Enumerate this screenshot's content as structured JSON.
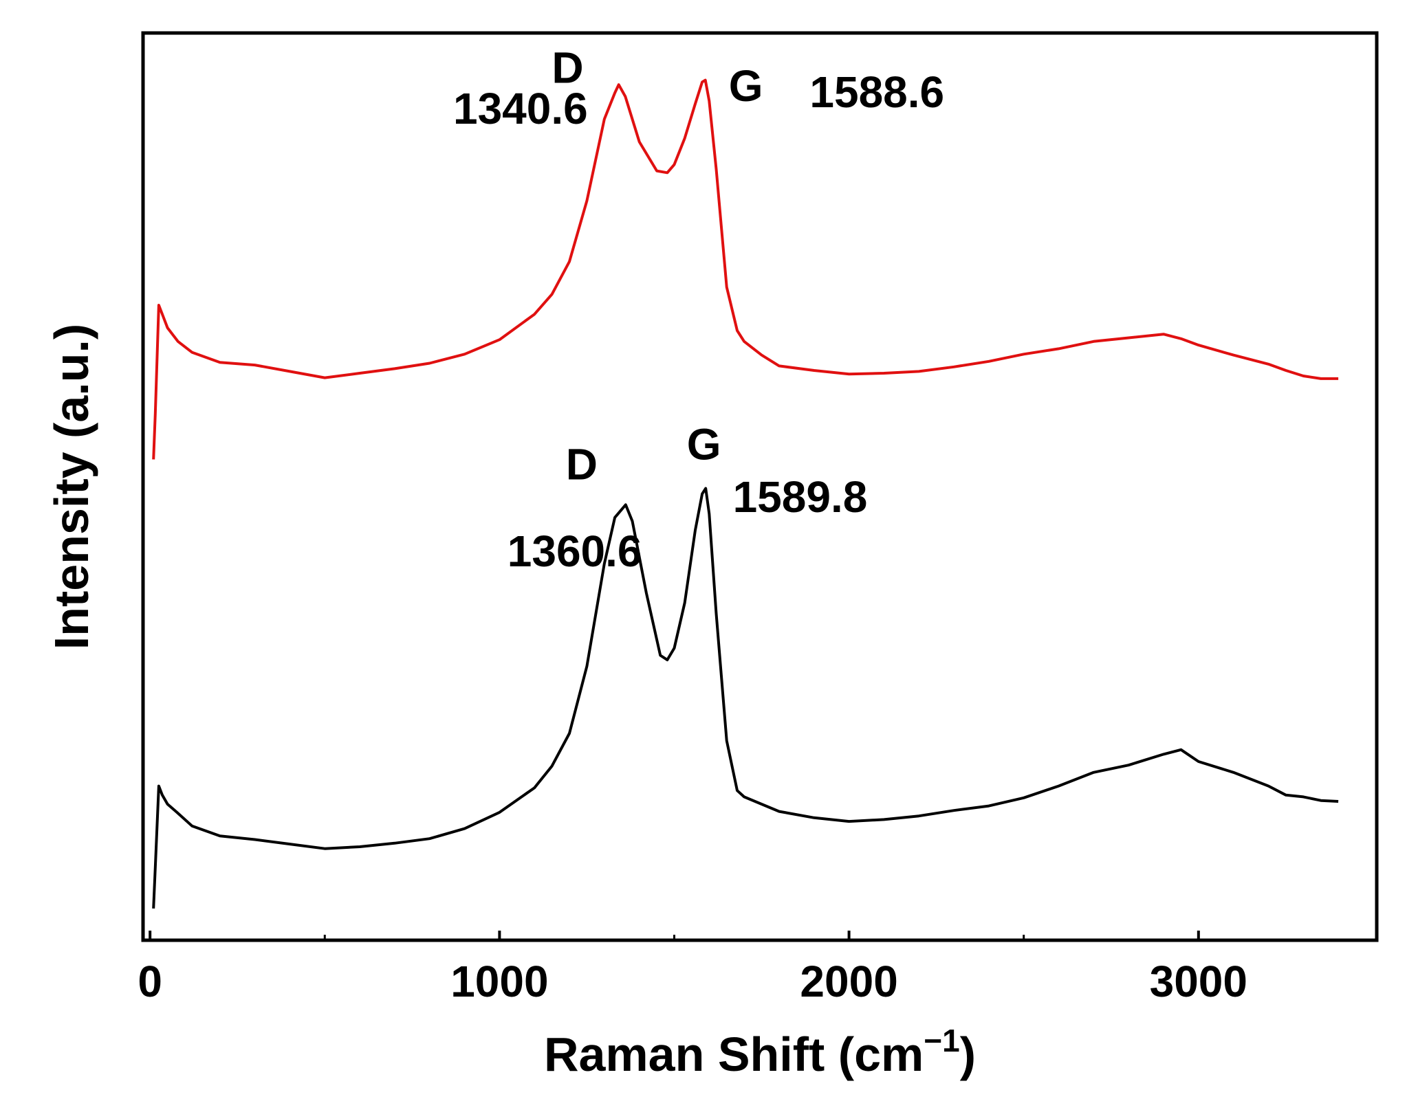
{
  "chart_data": {
    "type": "line",
    "title": "",
    "xlabel": "Raman Shift (cm",
    "xlabel_sup": "−1",
    "xlabel_close": ")",
    "ylabel": "Intensity (a.u.)",
    "xlim": [
      -20,
      3510
    ],
    "ylim": [
      0,
      1
    ],
    "grid": false,
    "x_ticks": [
      0,
      1000,
      2000,
      3000
    ],
    "x_tick_labels": [
      "0",
      "1000",
      "2000",
      "3000"
    ],
    "y_tick_labels_shown": false,
    "colors": {
      "red": "#e01010",
      "black": "#000000",
      "axis": "#000000"
    },
    "series": [
      {
        "color": "#e01010",
        "x": [
          10,
          15,
          25,
          35,
          50,
          80,
          120,
          200,
          300,
          400,
          500,
          600,
          700,
          800,
          900,
          1000,
          1100,
          1150,
          1200,
          1250,
          1300,
          1330,
          1341,
          1360,
          1400,
          1450,
          1480,
          1500,
          1530,
          1560,
          1580,
          1589,
          1600,
          1620,
          1650,
          1680,
          1700,
          1750,
          1800,
          1900,
          2000,
          2100,
          2200,
          2300,
          2400,
          2500,
          2600,
          2700,
          2800,
          2900,
          2950,
          3000,
          3100,
          3200,
          3250,
          3300,
          3350,
          3400
        ],
        "y": [
          0.53,
          0.58,
          0.7,
          0.69,
          0.675,
          0.66,
          0.648,
          0.637,
          0.634,
          0.627,
          0.62,
          0.625,
          0.63,
          0.636,
          0.646,
          0.662,
          0.69,
          0.712,
          0.748,
          0.815,
          0.905,
          0.934,
          0.943,
          0.93,
          0.88,
          0.848,
          0.846,
          0.855,
          0.884,
          0.922,
          0.946,
          0.948,
          0.925,
          0.85,
          0.72,
          0.672,
          0.66,
          0.645,
          0.633,
          0.628,
          0.624,
          0.625,
          0.627,
          0.632,
          0.638,
          0.646,
          0.652,
          0.66,
          0.664,
          0.668,
          0.663,
          0.656,
          0.645,
          0.635,
          0.628,
          0.622,
          0.619,
          0.619
        ]
      },
      {
        "color": "#000000",
        "x": [
          10,
          15,
          25,
          35,
          50,
          80,
          120,
          200,
          300,
          400,
          500,
          600,
          700,
          800,
          900,
          1000,
          1100,
          1150,
          1200,
          1250,
          1300,
          1330,
          1361,
          1380,
          1420,
          1460,
          1480,
          1500,
          1530,
          1560,
          1580,
          1590,
          1600,
          1620,
          1650,
          1680,
          1700,
          1750,
          1800,
          1900,
          2000,
          2100,
          2200,
          2300,
          2400,
          2500,
          2600,
          2700,
          2800,
          2900,
          2950,
          3000,
          3100,
          3200,
          3250,
          3300,
          3350,
          3400
        ],
        "y": [
          0.035,
          0.08,
          0.17,
          0.16,
          0.15,
          0.14,
          0.126,
          0.115,
          0.111,
          0.106,
          0.101,
          0.103,
          0.107,
          0.112,
          0.123,
          0.141,
          0.168,
          0.192,
          0.228,
          0.302,
          0.415,
          0.466,
          0.48,
          0.462,
          0.383,
          0.314,
          0.309,
          0.322,
          0.372,
          0.452,
          0.492,
          0.498,
          0.47,
          0.36,
          0.22,
          0.165,
          0.158,
          0.15,
          0.142,
          0.135,
          0.131,
          0.133,
          0.137,
          0.143,
          0.148,
          0.157,
          0.17,
          0.185,
          0.193,
          0.205,
          0.21,
          0.197,
          0.185,
          0.17,
          0.16,
          0.158,
          0.154,
          0.153
        ]
      }
    ],
    "annotations": [
      {
        "text": "D",
        "x": 1195,
        "y": 0.945
      },
      {
        "text": "1340.6",
        "x": 1060,
        "y": 0.9
      },
      {
        "text": "G",
        "x": 1705,
        "y": 0.925
      },
      {
        "text": "1588.6",
        "x": 2080,
        "y": 0.918
      },
      {
        "text": "D",
        "x": 1235,
        "y": 0.508
      },
      {
        "text": "1360.6",
        "x": 1215,
        "y": 0.412
      },
      {
        "text": "G",
        "x": 1585,
        "y": 0.53
      },
      {
        "text": "1589.8",
        "x": 1860,
        "y": 0.472
      }
    ]
  }
}
